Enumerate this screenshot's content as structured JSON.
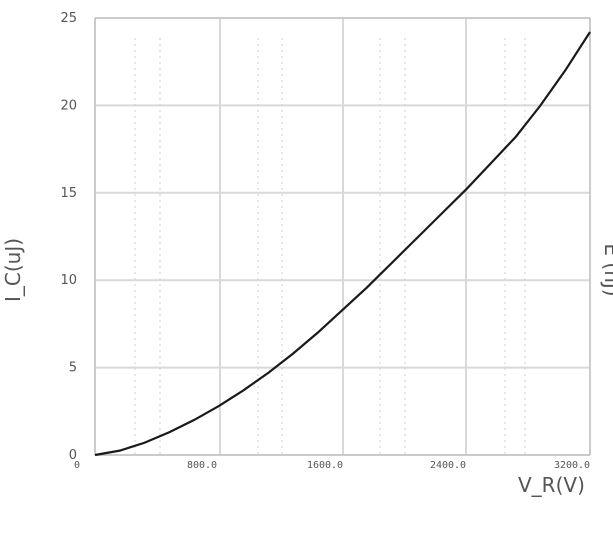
{
  "chart_data": {
    "type": "line",
    "title": "",
    "xlabel": "V_R(V)",
    "ylabel_left": "I_C(uJ)",
    "ylabel_right": "E (nJ)",
    "x_range": [
      0,
      400
    ],
    "ylim": [
      0,
      25
    ],
    "y_ticks": [
      0,
      5,
      10,
      15,
      20,
      25
    ],
    "y_tick_labels": [
      "0",
      "5",
      "10",
      "15",
      "20",
      "25"
    ],
    "x_tick_labels": [
      "0",
      "800.0",
      "1600.0",
      "2400.0",
      "3200.0"
    ],
    "grid": true,
    "series": [
      {
        "color": "#1a1a1a",
        "x": [
          0,
          20,
          40,
          60,
          80,
          100,
          120,
          140,
          160,
          180,
          200,
          220,
          240,
          260,
          280,
          300,
          320,
          340,
          360,
          380,
          400
        ],
        "y": [
          0.0,
          0.25,
          0.7,
          1.3,
          2.0,
          2.8,
          3.7,
          4.7,
          5.8,
          7.0,
          8.3,
          9.6,
          11.0,
          12.4,
          13.8,
          15.2,
          16.7,
          18.2,
          20.0,
          22.0,
          24.2
        ]
      }
    ]
  }
}
